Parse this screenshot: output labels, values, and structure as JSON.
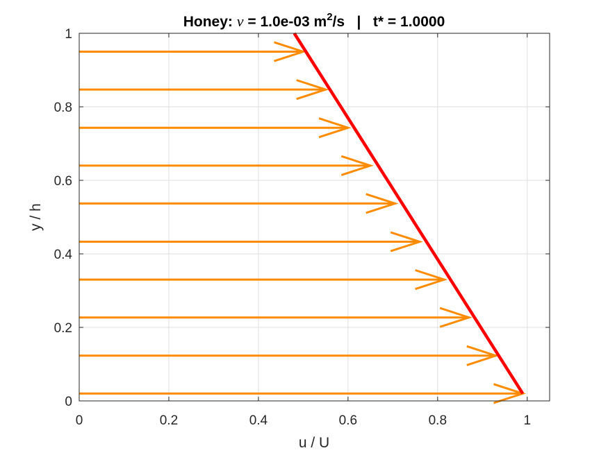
{
  "chart_data": {
    "type": "line",
    "title": {
      "prefix": "Honey: ",
      "nu_symbol": "ν",
      "mid": " = 1.0e-03 m",
      "sup": "2",
      "suffix": "/s   |   t* = 1.0000"
    },
    "xlabel": "u / U",
    "ylabel": "y / h",
    "xlim": [
      0,
      1.05
    ],
    "ylim": [
      0,
      1
    ],
    "xticks": [
      0,
      0.2,
      0.4,
      0.6,
      0.8,
      1
    ],
    "xtick_labels": [
      "0",
      "0.2",
      "0.4",
      "0.6",
      "0.8",
      "1"
    ],
    "yticks": [
      0,
      0.2,
      0.4,
      0.6,
      0.8,
      1
    ],
    "ytick_labels": [
      "0",
      "0.2",
      "0.4",
      "0.6",
      "0.8",
      "1"
    ],
    "grid": true,
    "profile_line": {
      "color": "#ff0000",
      "x": [
        0.99,
        0.48
      ],
      "y": [
        0.02,
        1.0
      ]
    },
    "arrows": {
      "color": "#ff8c00",
      "x_start": 0,
      "y": [
        0.02,
        0.123,
        0.227,
        0.33,
        0.433,
        0.537,
        0.64,
        0.743,
        0.847,
        0.95
      ],
      "u": [
        0.99,
        0.93,
        0.87,
        0.815,
        0.76,
        0.705,
        0.65,
        0.6,
        0.55,
        0.5
      ]
    }
  }
}
